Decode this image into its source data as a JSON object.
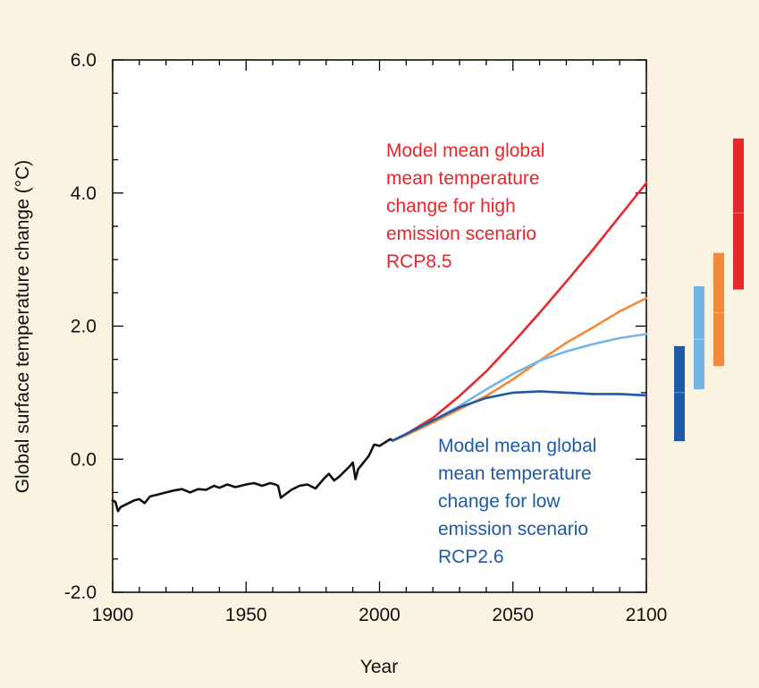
{
  "chart_data": {
    "type": "line",
    "title": "",
    "xlabel": "Year",
    "ylabel": "Global surface temperature change (°C)",
    "xlim": [
      1900,
      2100
    ],
    "ylim": [
      -2.0,
      6.0
    ],
    "x_ticks": [
      1900,
      1950,
      2000,
      2050,
      2100
    ],
    "y_ticks": [
      -2.0,
      0.0,
      2.0,
      4.0,
      6.0
    ],
    "y_tick_labels": [
      "-2.0",
      "0.0",
      "2.0",
      "4.0",
      "6.0"
    ],
    "grid": false,
    "legend": "none",
    "colors": {
      "historical": "#111111",
      "rcp85": "#e8262b",
      "rcp60": "#f28a3a",
      "rcp45": "#74b5e4",
      "rcp26": "#1f5aa6"
    },
    "series": [
      {
        "key": "historical",
        "x": [
          1900,
          1901,
          1902,
          1903,
          1905,
          1908,
          1910,
          1912,
          1914,
          1917,
          1920,
          1923,
          1926,
          1929,
          1932,
          1935,
          1938,
          1940,
          1943,
          1946,
          1950,
          1953,
          1956,
          1959,
          1961,
          1962,
          1963,
          1965,
          1967,
          1970,
          1973,
          1976,
          1979,
          1981,
          1983,
          1985,
          1987,
          1989,
          1990,
          1991,
          1992,
          1994,
          1996,
          1998,
          2000,
          2002,
          2004,
          2005
        ],
        "y": [
          -0.62,
          -0.64,
          -0.78,
          -0.72,
          -0.68,
          -0.62,
          -0.6,
          -0.66,
          -0.56,
          -0.53,
          -0.5,
          -0.47,
          -0.45,
          -0.5,
          -0.45,
          -0.46,
          -0.4,
          -0.43,
          -0.38,
          -0.42,
          -0.38,
          -0.36,
          -0.4,
          -0.36,
          -0.38,
          -0.4,
          -0.58,
          -0.52,
          -0.46,
          -0.4,
          -0.38,
          -0.44,
          -0.3,
          -0.22,
          -0.32,
          -0.26,
          -0.18,
          -0.1,
          -0.05,
          -0.3,
          -0.15,
          -0.05,
          0.05,
          0.22,
          0.2,
          0.25,
          0.3,
          0.28
        ]
      },
      {
        "key": "rcp85",
        "x": [
          2005,
          2010,
          2020,
          2030,
          2040,
          2050,
          2060,
          2070,
          2080,
          2090,
          2100
        ],
        "y": [
          0.28,
          0.38,
          0.62,
          0.95,
          1.32,
          1.75,
          2.2,
          2.67,
          3.15,
          3.65,
          4.15
        ]
      },
      {
        "key": "rcp60",
        "x": [
          2005,
          2010,
          2020,
          2030,
          2040,
          2050,
          2060,
          2070,
          2080,
          2090,
          2100
        ],
        "y": [
          0.28,
          0.36,
          0.55,
          0.75,
          0.95,
          1.2,
          1.48,
          1.75,
          1.98,
          2.22,
          2.42
        ]
      },
      {
        "key": "rcp45",
        "x": [
          2005,
          2010,
          2020,
          2030,
          2040,
          2050,
          2060,
          2070,
          2080,
          2090,
          2100
        ],
        "y": [
          0.28,
          0.38,
          0.58,
          0.8,
          1.05,
          1.28,
          1.48,
          1.62,
          1.73,
          1.82,
          1.88
        ]
      },
      {
        "key": "rcp26",
        "x": [
          2005,
          2010,
          2020,
          2030,
          2040,
          2050,
          2060,
          2070,
          2080,
          2090,
          2100
        ],
        "y": [
          0.28,
          0.38,
          0.58,
          0.78,
          0.92,
          1.0,
          1.02,
          1.0,
          0.98,
          0.98,
          0.96
        ]
      }
    ],
    "range_bars": [
      {
        "key": "rcp26",
        "low": 0.27,
        "high": 1.7,
        "mean": 1.0
      },
      {
        "key": "rcp45",
        "low": 1.05,
        "high": 2.6,
        "mean": 1.8
      },
      {
        "key": "rcp60",
        "low": 1.4,
        "high": 3.1,
        "mean": 2.2
      },
      {
        "key": "rcp85",
        "low": 2.55,
        "high": 4.82,
        "mean": 3.7
      }
    ],
    "annotations": {
      "high": {
        "lines": [
          "Model mean global",
          "mean temperature",
          "change for high",
          "emission scenario",
          "RCP8.5"
        ],
        "color": "#e8262b"
      },
      "low": {
        "lines": [
          "Model mean global",
          "mean temperature",
          "change for low",
          "emission scenario",
          "RCP2.6"
        ],
        "color": "#1f5aa6"
      }
    }
  }
}
